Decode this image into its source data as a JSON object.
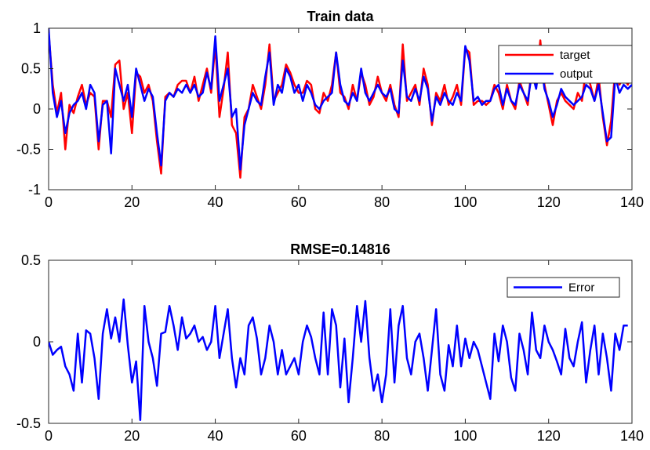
{
  "chart_data": [
    {
      "type": "line",
      "title": "Train data",
      "xlabel": "",
      "ylabel": "",
      "xlim": [
        0,
        140
      ],
      "ylim": [
        -1,
        1
      ],
      "xticks": [
        0,
        20,
        40,
        60,
        80,
        100,
        120,
        140
      ],
      "xtick_labels": [
        "0",
        "20",
        "40",
        "60",
        "80",
        "100",
        "120",
        "140"
      ],
      "yticks": [
        1,
        0.5,
        0,
        -0.5,
        -1
      ],
      "ytick_labels": [
        "1",
        "0.5",
        "0",
        "-0.5",
        "-1"
      ],
      "grid": false,
      "legend_position": "top-right",
      "series": [
        {
          "name": "target",
          "color": "#ff0000",
          "x": [
            0,
            1,
            2,
            3,
            4,
            5,
            6,
            7,
            8,
            9,
            10,
            11,
            12,
            13,
            14,
            15,
            16,
            17,
            18,
            19,
            20,
            21,
            22,
            23,
            24,
            25,
            26,
            27,
            28,
            29,
            30,
            31,
            32,
            33,
            34,
            35,
            36,
            37,
            38,
            39,
            40,
            41,
            42,
            43,
            44,
            45,
            46,
            47,
            48,
            49,
            50,
            51,
            52,
            53,
            54,
            55,
            56,
            57,
            58,
            59,
            60,
            61,
            62,
            63,
            64,
            65,
            66,
            67,
            68,
            69,
            70,
            71,
            72,
            73,
            74,
            75,
            76,
            77,
            78,
            79,
            80,
            81,
            82,
            83,
            84,
            85,
            86,
            87,
            88,
            89,
            90,
            91,
            92,
            93,
            94,
            95,
            96,
            97,
            98,
            99,
            100,
            101,
            102,
            103,
            104,
            105,
            106,
            107,
            108,
            109,
            110,
            111,
            112,
            113,
            114,
            115,
            116,
            117,
            118,
            119,
            120,
            121,
            122,
            123,
            124,
            125,
            126,
            127,
            128,
            129,
            130,
            131,
            132,
            133,
            134,
            135,
            136,
            137,
            138,
            139,
            140
          ],
          "y": [
            0.95,
            0.3,
            -0.05,
            0.2,
            -0.5,
            0.05,
            -0.05,
            0.15,
            0.3,
            0.05,
            0.2,
            0.15,
            -0.5,
            0.1,
            0.1,
            -0.1,
            0.55,
            0.6,
            0.0,
            0.2,
            -0.3,
            0.45,
            0.4,
            0.2,
            0.3,
            0.1,
            -0.4,
            -0.8,
            0.15,
            0.2,
            0.15,
            0.3,
            0.35,
            0.35,
            0.2,
            0.4,
            0.1,
            0.3,
            0.5,
            0.2,
            0.8,
            -0.1,
            0.25,
            0.7,
            -0.2,
            -0.3,
            -0.85,
            -0.1,
            0.0,
            0.3,
            0.15,
            0.0,
            0.3,
            0.8,
            0.1,
            0.2,
            0.3,
            0.55,
            0.45,
            0.3,
            0.2,
            0.2,
            0.35,
            0.3,
            0.0,
            -0.05,
            0.2,
            0.1,
            0.3,
            0.7,
            0.2,
            0.15,
            0.0,
            0.3,
            0.1,
            0.45,
            0.3,
            0.05,
            0.15,
            0.4,
            0.2,
            0.1,
            0.3,
            0.05,
            -0.1,
            0.8,
            0.1,
            0.2,
            0.3,
            0.05,
            0.5,
            0.3,
            -0.2,
            0.2,
            0.1,
            0.3,
            0.05,
            0.15,
            0.3,
            0.05,
            0.75,
            0.7,
            0.05,
            0.1,
            0.1,
            0.05,
            0.1,
            0.3,
            0.2,
            0.0,
            0.3,
            0.1,
            0.0,
            0.35,
            0.2,
            0.05,
            0.55,
            0.3,
            0.85,
            0.3,
            0.05,
            -0.2,
            0.1,
            0.2,
            0.1,
            0.05,
            0.0,
            0.2,
            0.1,
            0.5,
            0.3,
            0.1,
            0.4,
            -0.1,
            -0.45,
            -0.15,
            0.5,
            0.3,
            0.4,
            0.3,
            0.45
          ]
        },
        {
          "name": "output",
          "color": "#0000ff",
          "x": [
            0,
            1,
            2,
            3,
            4,
            5,
            6,
            7,
            8,
            9,
            10,
            11,
            12,
            13,
            14,
            15,
            16,
            17,
            18,
            19,
            20,
            21,
            22,
            23,
            24,
            25,
            26,
            27,
            28,
            29,
            30,
            31,
            32,
            33,
            34,
            35,
            36,
            37,
            38,
            39,
            40,
            41,
            42,
            43,
            44,
            45,
            46,
            47,
            48,
            49,
            50,
            51,
            52,
            53,
            54,
            55,
            56,
            57,
            58,
            59,
            60,
            61,
            62,
            63,
            64,
            65,
            66,
            67,
            68,
            69,
            70,
            71,
            72,
            73,
            74,
            75,
            76,
            77,
            78,
            79,
            80,
            81,
            82,
            83,
            84,
            85,
            86,
            87,
            88,
            89,
            90,
            91,
            92,
            93,
            94,
            95,
            96,
            97,
            98,
            99,
            100,
            101,
            102,
            103,
            104,
            105,
            106,
            107,
            108,
            109,
            110,
            111,
            112,
            113,
            114,
            115,
            116,
            117,
            118,
            119,
            120,
            121,
            122,
            123,
            124,
            125,
            126,
            127,
            128,
            129,
            130,
            131,
            132,
            133,
            134,
            135,
            136,
            137,
            138,
            139,
            140
          ],
          "y": [
            1.0,
            0.2,
            -0.1,
            0.1,
            -0.3,
            -0.05,
            0.05,
            0.1,
            0.2,
            0.0,
            0.3,
            0.2,
            -0.4,
            0.05,
            0.1,
            -0.55,
            0.5,
            0.3,
            0.1,
            0.3,
            -0.1,
            0.5,
            0.3,
            0.1,
            0.25,
            0.15,
            -0.3,
            -0.7,
            0.1,
            0.2,
            0.15,
            0.25,
            0.2,
            0.3,
            0.2,
            0.3,
            0.15,
            0.2,
            0.45,
            0.25,
            0.9,
            0.1,
            0.3,
            0.5,
            -0.1,
            0.0,
            -0.75,
            -0.2,
            0.0,
            0.2,
            0.1,
            0.05,
            0.4,
            0.7,
            0.05,
            0.3,
            0.2,
            0.5,
            0.4,
            0.2,
            0.3,
            0.1,
            0.3,
            0.2,
            0.05,
            0.0,
            0.1,
            0.15,
            0.2,
            0.7,
            0.3,
            0.1,
            0.05,
            0.2,
            0.1,
            0.5,
            0.2,
            0.1,
            0.2,
            0.3,
            0.2,
            0.15,
            0.25,
            0.0,
            -0.05,
            0.6,
            0.15,
            0.1,
            0.25,
            0.1,
            0.4,
            0.25,
            -0.15,
            0.15,
            0.05,
            0.2,
            0.1,
            0.05,
            0.2,
            0.1,
            0.78,
            0.6,
            0.1,
            0.15,
            0.05,
            0.1,
            0.1,
            0.25,
            0.3,
            0.05,
            0.25,
            0.1,
            0.05,
            0.3,
            0.2,
            0.1,
            0.45,
            0.25,
            0.65,
            0.25,
            0.1,
            -0.1,
            0.05,
            0.25,
            0.15,
            0.1,
            0.05,
            0.1,
            0.15,
            0.3,
            0.25,
            0.1,
            0.3,
            -0.05,
            -0.4,
            -0.35,
            0.4,
            0.2,
            0.3,
            0.25,
            0.3
          ]
        }
      ]
    },
    {
      "type": "line",
      "title": "RMSE=0.14816",
      "xlabel": "",
      "ylabel": "",
      "xlim": [
        0,
        140
      ],
      "ylim": [
        -0.5,
        0.5
      ],
      "xticks": [
        0,
        20,
        40,
        60,
        80,
        100,
        120,
        140
      ],
      "xtick_labels": [
        "0",
        "20",
        "40",
        "60",
        "80",
        "100",
        "120",
        "140"
      ],
      "yticks": [
        0.5,
        0,
        -0.5
      ],
      "ytick_labels": [
        "0.5",
        "0",
        "-0.5"
      ],
      "grid": false,
      "legend_position": "top-right",
      "series": [
        {
          "name": "Error",
          "color": "#0000ff",
          "x": [
            0,
            1,
            2,
            3,
            4,
            5,
            6,
            7,
            8,
            9,
            10,
            11,
            12,
            13,
            14,
            15,
            16,
            17,
            18,
            19,
            20,
            21,
            22,
            23,
            24,
            25,
            26,
            27,
            28,
            29,
            30,
            31,
            32,
            33,
            34,
            35,
            36,
            37,
            38,
            39,
            40,
            41,
            42,
            43,
            44,
            45,
            46,
            47,
            48,
            49,
            50,
            51,
            52,
            53,
            54,
            55,
            56,
            57,
            58,
            59,
            60,
            61,
            62,
            63,
            64,
            65,
            66,
            67,
            68,
            69,
            70,
            71,
            72,
            73,
            74,
            75,
            76,
            77,
            78,
            79,
            80,
            81,
            82,
            83,
            84,
            85,
            86,
            87,
            88,
            89,
            90,
            91,
            92,
            93,
            94,
            95,
            96,
            97,
            98,
            99,
            100,
            101,
            102,
            103,
            104,
            105,
            106,
            107,
            108,
            109,
            110,
            111,
            112,
            113,
            114,
            115,
            116,
            117,
            118,
            119,
            120,
            121,
            122,
            123,
            124,
            125,
            126,
            127,
            128,
            129,
            130,
            131,
            132,
            133,
            134,
            135,
            136,
            137,
            138,
            139
          ],
          "y": [
            0.0,
            -0.08,
            -0.05,
            -0.03,
            -0.15,
            -0.2,
            -0.3,
            0.05,
            -0.25,
            0.07,
            0.05,
            -0.1,
            -0.35,
            0.05,
            0.2,
            0.02,
            0.15,
            0.0,
            0.26,
            -0.02,
            -0.25,
            -0.12,
            -0.48,
            0.22,
            0.0,
            -0.1,
            -0.27,
            0.05,
            0.06,
            0.22,
            0.1,
            -0.05,
            0.15,
            0.02,
            0.05,
            0.1,
            0.0,
            0.03,
            -0.05,
            0.0,
            0.22,
            -0.1,
            0.05,
            0.2,
            -0.1,
            -0.28,
            -0.1,
            -0.2,
            0.1,
            0.15,
            0.02,
            -0.2,
            -0.1,
            0.1,
            0.0,
            -0.2,
            -0.05,
            -0.2,
            -0.15,
            -0.1,
            -0.2,
            0.0,
            0.1,
            0.03,
            -0.1,
            -0.2,
            0.18,
            -0.2,
            0.2,
            0.1,
            -0.28,
            0.02,
            -0.37,
            -0.1,
            0.22,
            0.0,
            0.25,
            -0.1,
            -0.3,
            -0.2,
            -0.37,
            -0.2,
            0.2,
            -0.25,
            0.1,
            0.22,
            -0.1,
            -0.2,
            0.0,
            0.05,
            -0.1,
            -0.3,
            -0.05,
            0.2,
            -0.2,
            -0.3,
            -0.02,
            -0.15,
            0.1,
            -0.15,
            0.02,
            -0.1,
            0.0,
            -0.05,
            -0.15,
            -0.25,
            -0.35,
            0.05,
            -0.12,
            0.1,
            0.0,
            -0.22,
            -0.3,
            0.05,
            -0.05,
            -0.2,
            0.18,
            -0.05,
            -0.1,
            0.1,
            0.0,
            -0.05,
            -0.12,
            -0.2,
            0.08,
            -0.1,
            -0.15,
            0.0,
            0.12,
            -0.25,
            -0.05,
            0.1,
            -0.2,
            0.05,
            -0.1,
            -0.3,
            0.05,
            -0.05,
            0.1,
            0.1
          ]
        }
      ]
    }
  ]
}
